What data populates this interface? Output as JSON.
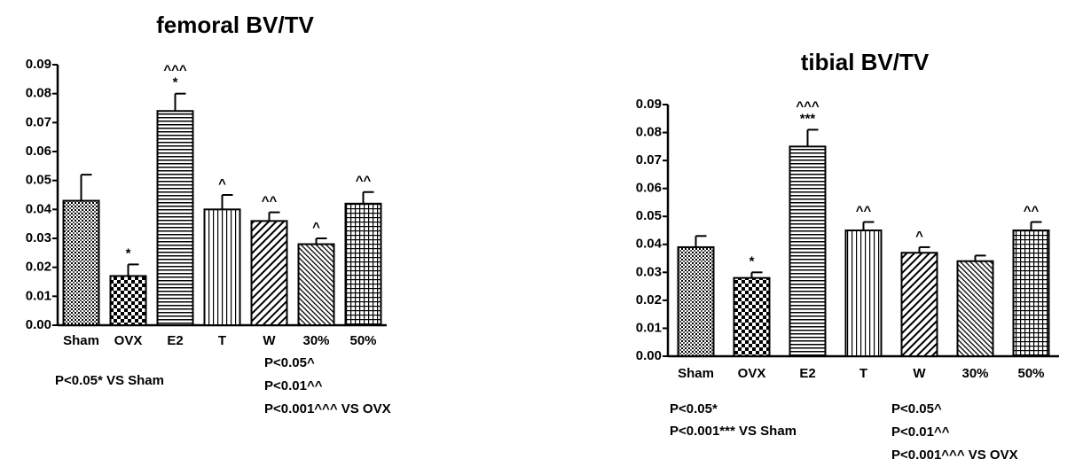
{
  "chart_data": [
    {
      "type": "bar",
      "title": "femoral BV/TV",
      "categories": [
        "Sham",
        "OVX",
        "E2",
        "T",
        "W",
        "30%",
        "50%"
      ],
      "values": [
        0.043,
        0.017,
        0.074,
        0.04,
        0.036,
        0.028,
        0.042
      ],
      "errors": [
        0.009,
        0.004,
        0.006,
        0.005,
        0.003,
        0.002,
        0.004
      ],
      "sig_labels": [
        null,
        [
          "*"
        ],
        [
          "^^^",
          "*"
        ],
        [
          "^"
        ],
        [
          "^^"
        ],
        [
          "^"
        ],
        [
          "^^"
        ]
      ],
      "patterns": [
        "dense-dots",
        "checker",
        "hlines",
        "vlines",
        "diag",
        "diag-dense",
        "grid"
      ],
      "ylim": [
        0,
        0.09
      ],
      "yticks": [
        {
          "value": 0,
          "label": "0.00"
        },
        0.01,
        0.02,
        0.03,
        0.04,
        0.05,
        0.06,
        0.07,
        0.08,
        0.09
      ],
      "notes_left": [
        "P<0.05*  VS Sham"
      ],
      "notes_right": [
        "P<0.05^",
        "P<0.01^^",
        "P<0.001^^^ VS OVX"
      ]
    },
    {
      "type": "bar",
      "title": "tibial BV/TV",
      "categories": [
        "Sham",
        "OVX",
        "E2",
        "T",
        "W",
        "30%",
        "50%"
      ],
      "values": [
        0.039,
        0.028,
        0.075,
        0.045,
        0.037,
        0.034,
        0.045
      ],
      "errors": [
        0.004,
        0.002,
        0.006,
        0.003,
        0.002,
        0.002,
        0.003
      ],
      "sig_labels": [
        null,
        [
          "*"
        ],
        [
          "^^^",
          "***"
        ],
        [
          "^^"
        ],
        [
          "^"
        ],
        null,
        [
          "^^"
        ]
      ],
      "patterns": [
        "dense-dots",
        "checker",
        "hlines",
        "vlines",
        "diag",
        "diag-dense",
        "grid"
      ],
      "ylim": [
        0,
        0.09
      ],
      "yticks": [
        {
          "value": 0,
          "label": "0.00"
        },
        0.01,
        0.02,
        0.03,
        0.04,
        0.05,
        0.06,
        0.07,
        0.08,
        0.09
      ],
      "notes_left": [
        "P<0.05*",
        "P<0.001*** VS Sham"
      ],
      "notes_right": [
        "P<0.05^",
        "P<0.01^^",
        "P<0.001^^^ VS OVX"
      ]
    }
  ]
}
